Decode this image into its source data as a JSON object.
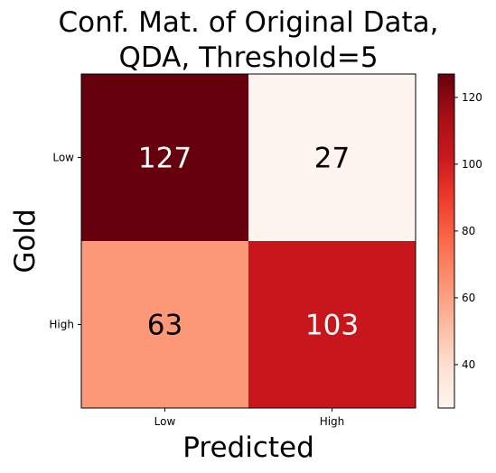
{
  "chart_data": {
    "type": "heatmap",
    "title": "Conf. Mat. of Original Data,\nQDA, Threshold=5",
    "xlabel": "Predicted",
    "ylabel": "Gold",
    "x_categories": [
      "Low",
      "High"
    ],
    "y_categories": [
      "Low",
      "High"
    ],
    "values": [
      [
        127,
        27
      ],
      [
        63,
        103
      ]
    ],
    "colormap": "Reds",
    "colorbar": {
      "min": 27,
      "max": 127,
      "ticks": [
        40,
        60,
        80,
        100,
        120
      ]
    },
    "text_colors": {
      "on_dark": "#ffffff",
      "on_light": "#000000"
    }
  }
}
